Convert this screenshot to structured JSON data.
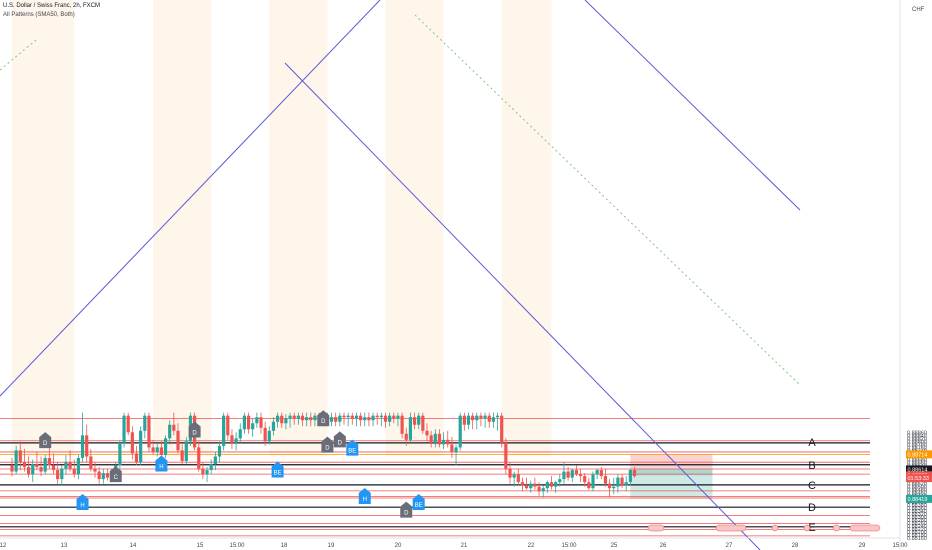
{
  "header": {
    "symbol_line": "U.S. Dollar / Swiss Franc, 2h, FXCM",
    "indicator_line": "All Patterns (SMA50, Both)"
  },
  "currency_label": "CHF",
  "colors": {
    "up": "#26a69a",
    "down": "#ef5350",
    "hline_red": "#ef5350",
    "hline_black": "#131722",
    "channel": "#5b5bd6",
    "trend_dotted": "#81c784",
    "orange_line": "#ff9800",
    "stop_zone": "#fbd3d3",
    "target_zone": "#cfe9e4",
    "pattern_gray": "#6a6d78",
    "pattern_blue": "#2196f3",
    "time_shade": "#fdf1e3"
  },
  "chart_data": {
    "type": "candlestick",
    "title": "U.S. Dollar / Swiss Franc, 2h, FXCM",
    "ylim": [
      0.8815,
      0.8895
    ],
    "y_ticks": [
      "0.88860",
      "0.88840",
      "0.88820",
      "0.88800",
      "0.88780",
      "0.88760",
      "0.88740",
      "0.88720",
      "0.88700",
      "0.88680",
      "0.88660",
      "0.88640",
      "0.88620",
      "0.88600",
      "0.88580",
      "0.88560",
      "0.88540",
      "0.88520",
      "0.88500",
      "0.88480",
      "0.88460",
      "0.88440",
      "0.88420",
      "0.88400",
      "0.88380",
      "0.88360",
      "0.88340",
      "0.88320",
      "0.88300",
      "0.88280",
      "0.88260",
      "0.88240",
      "0.88220",
      "0.88200",
      "0.88180",
      "0.88160"
    ],
    "x_labels": [
      "12",
      "13",
      "14",
      "15",
      "15:00",
      "18",
      "19",
      "20",
      "21",
      "22",
      "15:00",
      "25",
      "26",
      "27",
      "28",
      "29",
      "15:00"
    ],
    "price_labels": [
      {
        "text": "0.88714",
        "value": 0.88714,
        "color": "#ff9800"
      },
      {
        "text": "0.88614",
        "value": 0.88614,
        "color": "#131722"
      },
      {
        "text": "0.88575",
        "value": 0.88575,
        "color": "#ef5350"
      },
      {
        "text": "01:53:33",
        "value": 0.88557,
        "color": "#ef5350"
      },
      {
        "text": "0.88419",
        "value": 0.88419,
        "color": "#26a69a"
      }
    ],
    "horizontal_lines": [
      {
        "value": 0.88952,
        "style": "red"
      },
      {
        "value": 0.88804,
        "style": "red"
      },
      {
        "value": 0.8879,
        "style": "black"
      },
      {
        "value": 0.8873,
        "style": "red"
      },
      {
        "value": 0.88714,
        "style": "orange"
      },
      {
        "value": 0.88662,
        "style": "red"
      },
      {
        "value": 0.88645,
        "style": "black"
      },
      {
        "value": 0.88617,
        "style": "red"
      },
      {
        "value": 0.88583,
        "style": "red"
      },
      {
        "value": 0.88512,
        "style": "black"
      },
      {
        "value": 0.88472,
        "style": "red"
      },
      {
        "value": 0.88435,
        "style": "red"
      },
      {
        "value": 0.88425,
        "style": "red"
      },
      {
        "value": 0.88364,
        "style": "black"
      },
      {
        "value": 0.8831,
        "style": "red"
      },
      {
        "value": 0.88257,
        "style": "red"
      },
      {
        "value": 0.88234,
        "style": "black"
      },
      {
        "value": 0.88217,
        "style": "red"
      },
      {
        "value": 0.88174,
        "style": "red"
      }
    ],
    "level_labels": [
      {
        "text": "A",
        "value": 0.88797
      },
      {
        "text": "B",
        "value": 0.88645
      },
      {
        "text": "C",
        "value": 0.88512
      },
      {
        "text": "D",
        "value": 0.88364
      },
      {
        "text": "E",
        "value": 0.88234
      }
    ],
    "position": {
      "bar_start": 149,
      "bar_end": 163,
      "entry": 0.88614,
      "stop": 0.88714,
      "target": 0.88419,
      "current": 0.88575
    },
    "candles": [
      [
        0.8864,
        0.8869,
        0.8857,
        0.886
      ],
      [
        0.886,
        0.8877,
        0.8858,
        0.8874
      ],
      [
        0.8874,
        0.888,
        0.8861,
        0.8866
      ],
      [
        0.8866,
        0.8875,
        0.886,
        0.8863
      ],
      [
        0.8863,
        0.887,
        0.8856,
        0.8858
      ],
      [
        0.8858,
        0.8868,
        0.8853,
        0.8865
      ],
      [
        0.8865,
        0.8873,
        0.8861,
        0.8863
      ],
      [
        0.8863,
        0.887,
        0.8857,
        0.886
      ],
      [
        0.886,
        0.8871,
        0.8858,
        0.8869
      ],
      [
        0.8869,
        0.8878,
        0.8862,
        0.8864
      ],
      [
        0.8864,
        0.8872,
        0.8858,
        0.8861
      ],
      [
        0.8861,
        0.8866,
        0.8852,
        0.8855
      ],
      [
        0.8855,
        0.8864,
        0.8851,
        0.8862
      ],
      [
        0.8862,
        0.8871,
        0.8858,
        0.8866
      ],
      [
        0.8866,
        0.8874,
        0.886,
        0.8862
      ],
      [
        0.8862,
        0.8868,
        0.8856,
        0.8858
      ],
      [
        0.8858,
        0.8871,
        0.8855,
        0.8869
      ],
      [
        0.8869,
        0.8899,
        0.8866,
        0.8884
      ],
      [
        0.8884,
        0.8891,
        0.8866,
        0.887
      ],
      [
        0.887,
        0.8875,
        0.886,
        0.8862
      ],
      [
        0.8862,
        0.8866,
        0.8856,
        0.886
      ],
      [
        0.886,
        0.8863,
        0.8852,
        0.8855
      ],
      [
        0.8855,
        0.8862,
        0.8852,
        0.8859
      ],
      [
        0.8859,
        0.8862,
        0.8854,
        0.8856
      ],
      [
        0.8856,
        0.8862,
        0.8853,
        0.886
      ],
      [
        0.886,
        0.8866,
        0.8856,
        0.8864
      ],
      [
        0.8864,
        0.8881,
        0.8862,
        0.8879
      ],
      [
        0.8879,
        0.8899,
        0.8876,
        0.8897
      ],
      [
        0.8897,
        0.8899,
        0.8884,
        0.8886
      ],
      [
        0.8886,
        0.889,
        0.8868,
        0.8872
      ],
      [
        0.8872,
        0.8877,
        0.8864,
        0.8866
      ],
      [
        0.8866,
        0.889,
        0.8864,
        0.8887
      ],
      [
        0.8887,
        0.8899,
        0.8882,
        0.8897
      ],
      [
        0.8897,
        0.8899,
        0.8873,
        0.8876
      ],
      [
        0.8876,
        0.8881,
        0.8871,
        0.8873
      ],
      [
        0.8873,
        0.8879,
        0.887,
        0.8876
      ],
      [
        0.8876,
        0.888,
        0.8868,
        0.8871
      ],
      [
        0.8871,
        0.8884,
        0.8869,
        0.8882
      ],
      [
        0.8882,
        0.8894,
        0.8878,
        0.8891
      ],
      [
        0.8891,
        0.8899,
        0.8884,
        0.8887
      ],
      [
        0.8887,
        0.8892,
        0.8872,
        0.8874
      ],
      [
        0.8874,
        0.8878,
        0.8865,
        0.8867
      ],
      [
        0.8867,
        0.8883,
        0.8865,
        0.888
      ],
      [
        0.888,
        0.8899,
        0.8877,
        0.8897
      ],
      [
        0.8897,
        0.8899,
        0.8874,
        0.8876
      ],
      [
        0.8876,
        0.888,
        0.886,
        0.8862
      ],
      [
        0.8862,
        0.8866,
        0.8855,
        0.8858
      ],
      [
        0.8858,
        0.8863,
        0.8853,
        0.8861
      ],
      [
        0.8861,
        0.8868,
        0.8858,
        0.8865
      ],
      [
        0.8865,
        0.8873,
        0.8861,
        0.887
      ],
      [
        0.887,
        0.888,
        0.8866,
        0.8877
      ],
      [
        0.8877,
        0.8899,
        0.8874,
        0.8897
      ],
      [
        0.8897,
        0.8899,
        0.8881,
        0.8884
      ],
      [
        0.8884,
        0.8888,
        0.8875,
        0.8879
      ],
      [
        0.8879,
        0.8886,
        0.8874,
        0.8882
      ],
      [
        0.8882,
        0.8892,
        0.8879,
        0.8888
      ],
      [
        0.8888,
        0.8899,
        0.8885,
        0.8897
      ],
      [
        0.8897,
        0.8899,
        0.8885,
        0.8888
      ],
      [
        0.8888,
        0.8895,
        0.8883,
        0.8892
      ],
      [
        0.8892,
        0.8899,
        0.8889,
        0.8896
      ],
      [
        0.8896,
        0.8899,
        0.8885,
        0.8889
      ],
      [
        0.8889,
        0.8893,
        0.8877,
        0.888
      ],
      [
        0.888,
        0.889,
        0.8878,
        0.8887
      ],
      [
        0.8887,
        0.8896,
        0.8884,
        0.8893
      ],
      [
        0.8893,
        0.8899,
        0.8889,
        0.8897
      ],
      [
        0.8897,
        0.8899,
        0.8889,
        0.8892
      ],
      [
        0.8892,
        0.8898,
        0.8888,
        0.8895
      ],
      [
        0.8895,
        0.8899,
        0.8889,
        0.8897
      ],
      [
        0.8897,
        0.8899,
        0.8891,
        0.8895
      ],
      [
        0.8895,
        0.8899,
        0.8891,
        0.8897
      ],
      [
        0.8897,
        0.8899,
        0.889,
        0.8894
      ],
      [
        0.8894,
        0.8899,
        0.889,
        0.8896
      ],
      [
        0.8896,
        0.8899,
        0.889,
        0.8894
      ],
      [
        0.8894,
        0.8899,
        0.889,
        0.8897
      ],
      [
        0.8897,
        0.8899,
        0.8891,
        0.8895
      ],
      [
        0.8895,
        0.8899,
        0.889,
        0.8897
      ],
      [
        0.8897,
        0.8899,
        0.889,
        0.8893
      ],
      [
        0.8893,
        0.8899,
        0.889,
        0.8896
      ],
      [
        0.8896,
        0.8899,
        0.889,
        0.8893
      ],
      [
        0.8893,
        0.8899,
        0.889,
        0.8897
      ],
      [
        0.8897,
        0.8899,
        0.8891,
        0.8896
      ],
      [
        0.8896,
        0.8899,
        0.889,
        0.8897
      ],
      [
        0.8897,
        0.8899,
        0.8891,
        0.8895
      ],
      [
        0.8895,
        0.8899,
        0.889,
        0.8897
      ],
      [
        0.8897,
        0.8899,
        0.889,
        0.8894
      ],
      [
        0.8894,
        0.8899,
        0.889,
        0.8896
      ],
      [
        0.8896,
        0.8899,
        0.889,
        0.8894
      ],
      [
        0.8894,
        0.8899,
        0.889,
        0.8897
      ],
      [
        0.8897,
        0.8899,
        0.8891,
        0.8896
      ],
      [
        0.8896,
        0.8899,
        0.889,
        0.8897
      ],
      [
        0.8897,
        0.8899,
        0.8889,
        0.8893
      ],
      [
        0.8893,
        0.8899,
        0.889,
        0.8897
      ],
      [
        0.8897,
        0.8899,
        0.8892,
        0.8895
      ],
      [
        0.8895,
        0.8899,
        0.889,
        0.8897
      ],
      [
        0.8897,
        0.8899,
        0.8882,
        0.8885
      ],
      [
        0.8885,
        0.8889,
        0.8877,
        0.8881
      ],
      [
        0.8881,
        0.8899,
        0.8879,
        0.8896
      ],
      [
        0.8896,
        0.8899,
        0.8888,
        0.8891
      ],
      [
        0.8891,
        0.8899,
        0.8888,
        0.8897
      ],
      [
        0.8897,
        0.8899,
        0.8885,
        0.8887
      ],
      [
        0.8887,
        0.8892,
        0.888,
        0.8884
      ],
      [
        0.8884,
        0.8887,
        0.8876,
        0.8879
      ],
      [
        0.8879,
        0.8888,
        0.8876,
        0.8885
      ],
      [
        0.8885,
        0.8888,
        0.8876,
        0.8878
      ],
      [
        0.8878,
        0.8886,
        0.8875,
        0.8881
      ],
      [
        0.8881,
        0.8887,
        0.8876,
        0.8878
      ],
      [
        0.8878,
        0.8883,
        0.8869,
        0.8873
      ],
      [
        0.8873,
        0.8878,
        0.8864,
        0.8876
      ],
      [
        0.8876,
        0.8899,
        0.8874,
        0.8897
      ],
      [
        0.8897,
        0.8899,
        0.8887,
        0.8891
      ],
      [
        0.8891,
        0.8899,
        0.8888,
        0.8897
      ],
      [
        0.8897,
        0.8899,
        0.8888,
        0.8894
      ],
      [
        0.8894,
        0.8899,
        0.8888,
        0.8897
      ],
      [
        0.8897,
        0.8899,
        0.889,
        0.8895
      ],
      [
        0.8895,
        0.8899,
        0.8889,
        0.8897
      ],
      [
        0.8897,
        0.8899,
        0.8889,
        0.8893
      ],
      [
        0.8893,
        0.8899,
        0.8889,
        0.8896
      ],
      [
        0.8896,
        0.8899,
        0.8887,
        0.8897
      ],
      [
        0.8897,
        0.8899,
        0.8876,
        0.8879
      ],
      [
        0.8879,
        0.8882,
        0.8858,
        0.8862
      ],
      [
        0.8862,
        0.8866,
        0.8852,
        0.8856
      ],
      [
        0.8856,
        0.886,
        0.885,
        0.8858
      ],
      [
        0.8858,
        0.8862,
        0.8851,
        0.8853
      ],
      [
        0.8853,
        0.8856,
        0.8847,
        0.8851
      ],
      [
        0.8851,
        0.8856,
        0.8848,
        0.8849
      ],
      [
        0.8849,
        0.8854,
        0.8846,
        0.8852
      ],
      [
        0.8852,
        0.8856,
        0.8848,
        0.885
      ],
      [
        0.885,
        0.8853,
        0.8844,
        0.8847
      ],
      [
        0.8847,
        0.8851,
        0.8843,
        0.8849
      ],
      [
        0.8849,
        0.8854,
        0.8846,
        0.8853
      ],
      [
        0.8853,
        0.8857,
        0.8848,
        0.885
      ],
      [
        0.885,
        0.8854,
        0.8846,
        0.8853
      ],
      [
        0.8853,
        0.8858,
        0.885,
        0.8855
      ],
      [
        0.8855,
        0.8866,
        0.8852,
        0.886
      ],
      [
        0.886,
        0.8863,
        0.8854,
        0.8856
      ],
      [
        0.8856,
        0.8862,
        0.8853,
        0.8861
      ],
      [
        0.8861,
        0.8864,
        0.8857,
        0.8858
      ],
      [
        0.8858,
        0.8862,
        0.8853,
        0.8857
      ],
      [
        0.8857,
        0.8859,
        0.885,
        0.8853
      ],
      [
        0.8853,
        0.8856,
        0.8848,
        0.8849
      ],
      [
        0.8849,
        0.886,
        0.8847,
        0.8858
      ],
      [
        0.8858,
        0.8862,
        0.8855,
        0.8861
      ],
      [
        0.8861,
        0.8863,
        0.8855,
        0.8857
      ],
      [
        0.8857,
        0.8862,
        0.885,
        0.8852
      ],
      [
        0.8852,
        0.8855,
        0.8843,
        0.8849
      ],
      [
        0.8849,
        0.8856,
        0.8845,
        0.885
      ],
      [
        0.885,
        0.8858,
        0.8846,
        0.8856
      ],
      [
        0.8856,
        0.8858,
        0.8849,
        0.8851
      ],
      [
        0.8851,
        0.8857,
        0.8847,
        0.8853
      ],
      [
        0.8853,
        0.8862,
        0.8851,
        0.8861
      ],
      [
        0.8861,
        0.8863,
        0.8856,
        0.8857
      ]
    ],
    "pattern_markers": [
      {
        "label": "D",
        "bar": 8,
        "value": 0.88795,
        "color": "gray"
      },
      {
        "label": "C",
        "bar": 25,
        "value": 0.8857,
        "color": "gray"
      },
      {
        "label": "H",
        "bar": 17,
        "value": 0.88385,
        "color": "blue"
      },
      {
        "label": "H",
        "bar": 36,
        "value": 0.8864,
        "color": "blue"
      },
      {
        "label": "D",
        "bar": 44,
        "value": 0.88865,
        "color": "gray"
      },
      {
        "label": "BE",
        "bar": 64,
        "value": 0.886,
        "color": "blue"
      },
      {
        "label": "D",
        "bar": 75,
        "value": 0.8894,
        "color": "gray"
      },
      {
        "label": "D",
        "bar": 79,
        "value": 0.888,
        "color": "gray"
      },
      {
        "label": "D",
        "bar": 76,
        "value": 0.88765,
        "color": "gray"
      },
      {
        "label": "BE",
        "bar": 82,
        "value": 0.88745,
        "color": "blue"
      },
      {
        "label": "H",
        "bar": 85,
        "value": 0.88425,
        "color": "blue"
      },
      {
        "label": "BE",
        "bar": 98,
        "value": 0.88385,
        "color": "blue"
      },
      {
        "label": "D",
        "bar": 95,
        "value": 0.88335,
        "color": "gray"
      }
    ]
  }
}
